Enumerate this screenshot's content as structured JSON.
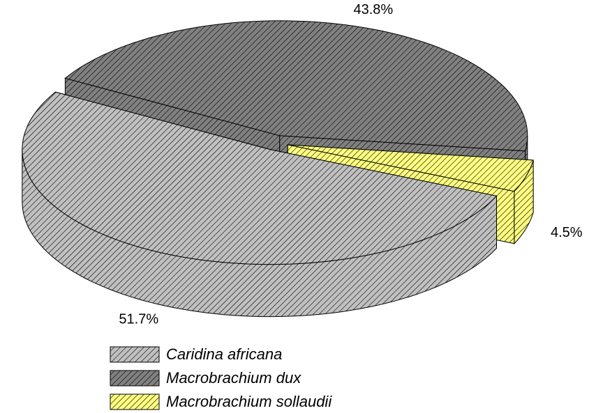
{
  "chart_data": {
    "type": "pie",
    "categories": [
      "Caridina africana",
      "Macrobrachium dux",
      "Macrobrachium sollaudii"
    ],
    "values": [
      51.7,
      43.8,
      4.5
    ],
    "value_labels": [
      "51.7%",
      "43.8%",
      "4.5%"
    ],
    "colors": [
      "#c0c0c0",
      "#808080",
      "#ffff80"
    ],
    "legend": "bottom"
  }
}
